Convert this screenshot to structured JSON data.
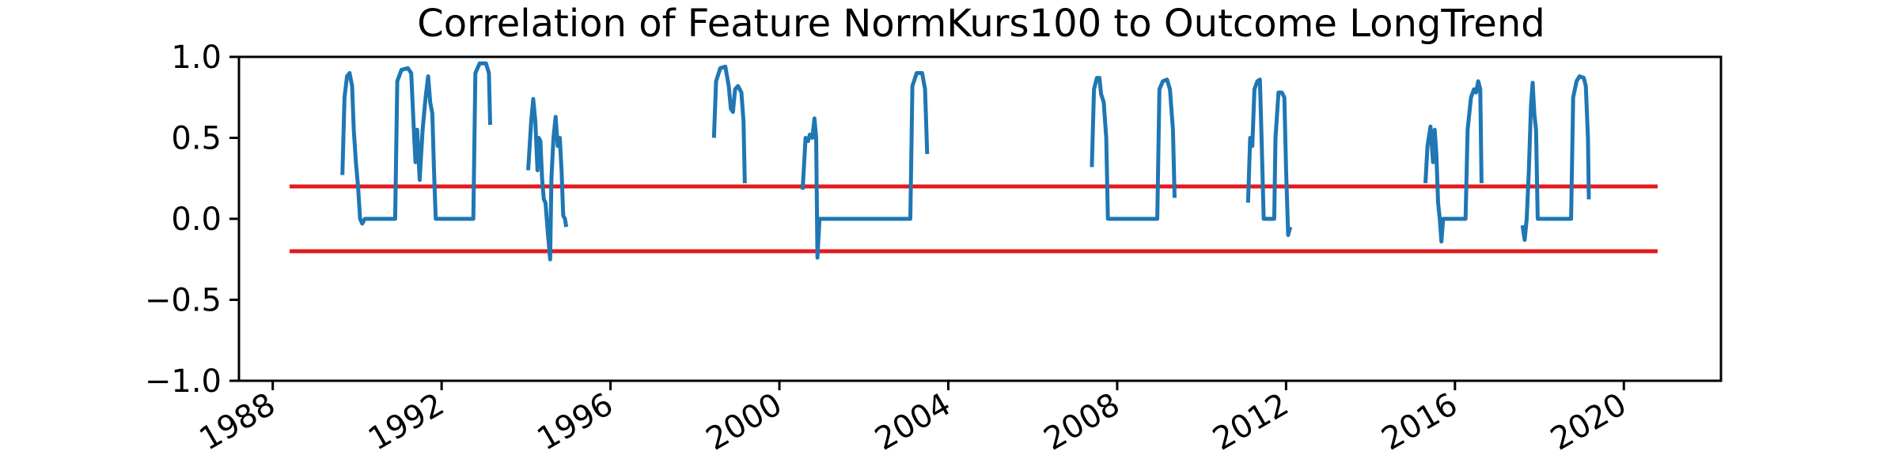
{
  "chart_data": {
    "type": "line",
    "title": "Correlation of Feature NormKurs100 to Outcome LongTrend",
    "xlabel": "",
    "ylabel": "",
    "xlim": [
      1987.2,
      2022.3
    ],
    "ylim": [
      -1.0,
      1.0
    ],
    "x_ticks": [
      1988,
      1992,
      1996,
      2000,
      2004,
      2008,
      2012,
      2016,
      2020
    ],
    "x_tick_labels": [
      "1988",
      "1992",
      "1996",
      "2000",
      "2004",
      "2008",
      "2012",
      "2016",
      "2020"
    ],
    "y_ticks": [
      -1.0,
      -0.5,
      0.0,
      0.5,
      1.0
    ],
    "y_tick_labels": [
      "−1.0",
      "−0.5",
      "0.0",
      "0.5",
      "1.0"
    ],
    "grid": false,
    "series_color": "#1f77b4",
    "threshold_color": "#e31a1c",
    "thresholds": [
      {
        "y": 0.2,
        "x_start": 1988.4,
        "x_end": 2020.8
      },
      {
        "y": -0.2,
        "x_start": 1988.4,
        "x_end": 2020.8
      }
    ],
    "series": [
      {
        "segments": [
          [
            [
              1989.65,
              0.27
            ],
            [
              1989.7,
              0.75
            ],
            [
              1989.76,
              0.88
            ],
            [
              1989.82,
              0.9
            ],
            [
              1989.88,
              0.82
            ],
            [
              1989.92,
              0.55
            ],
            [
              1989.97,
              0.35
            ],
            [
              1990.02,
              0.2
            ],
            [
              1990.07,
              0.0
            ],
            [
              1990.12,
              -0.03
            ],
            [
              1990.18,
              0.0
            ],
            [
              1990.9,
              0.0
            ],
            [
              1990.95,
              0.85
            ],
            [
              1991.05,
              0.92
            ],
            [
              1991.2,
              0.93
            ],
            [
              1991.28,
              0.9
            ],
            [
              1991.35,
              0.5
            ],
            [
              1991.38,
              0.35
            ],
            [
              1991.42,
              0.55
            ],
            [
              1991.48,
              0.24
            ],
            [
              1991.55,
              0.55
            ],
            [
              1991.62,
              0.75
            ],
            [
              1991.68,
              0.88
            ],
            [
              1991.73,
              0.72
            ],
            [
              1991.78,
              0.65
            ],
            [
              1991.82,
              0.3
            ],
            [
              1991.86,
              0.0
            ],
            [
              1992.75,
              0.0
            ],
            [
              1992.8,
              0.9
            ],
            [
              1992.9,
              0.96
            ],
            [
              1993.05,
              0.96
            ],
            [
              1993.12,
              0.9
            ],
            [
              1993.15,
              0.58
            ]
          ],
          [
            [
              1994.05,
              0.3
            ],
            [
              1994.12,
              0.6
            ],
            [
              1994.17,
              0.74
            ],
            [
              1994.22,
              0.6
            ],
            [
              1994.27,
              0.3
            ],
            [
              1994.3,
              0.5
            ],
            [
              1994.34,
              0.48
            ],
            [
              1994.38,
              0.25
            ],
            [
              1994.42,
              0.12
            ],
            [
              1994.46,
              0.1
            ],
            [
              1994.52,
              -0.1
            ],
            [
              1994.57,
              -0.25
            ],
            [
              1994.6,
              0.25
            ],
            [
              1994.65,
              0.5
            ],
            [
              1994.7,
              0.63
            ],
            [
              1994.75,
              0.45
            ],
            [
              1994.8,
              0.5
            ],
            [
              1994.84,
              0.3
            ],
            [
              1994.88,
              0.02
            ],
            [
              1994.92,
              0.0
            ],
            [
              1994.95,
              -0.05
            ]
          ],
          [
            [
              1998.45,
              0.5
            ],
            [
              1998.5,
              0.85
            ],
            [
              1998.6,
              0.93
            ],
            [
              1998.72,
              0.94
            ],
            [
              1998.8,
              0.82
            ],
            [
              1998.85,
              0.68
            ],
            [
              1998.9,
              0.66
            ],
            [
              1998.95,
              0.8
            ],
            [
              1999.02,
              0.82
            ],
            [
              1999.1,
              0.78
            ],
            [
              1999.15,
              0.6
            ],
            [
              1999.18,
              0.22
            ]
          ],
          [
            [
              2000.55,
              0.18
            ],
            [
              2000.62,
              0.5
            ],
            [
              2000.68,
              0.48
            ],
            [
              2000.72,
              0.52
            ],
            [
              2000.78,
              0.5
            ],
            [
              2000.83,
              0.62
            ],
            [
              2000.87,
              0.5
            ],
            [
              2000.9,
              -0.24
            ],
            [
              2000.95,
              0.0
            ],
            [
              2003.1,
              0.0
            ],
            [
              2003.15,
              0.82
            ],
            [
              2003.25,
              0.9
            ],
            [
              2003.38,
              0.9
            ],
            [
              2003.45,
              0.8
            ],
            [
              2003.5,
              0.4
            ]
          ],
          [
            [
              2007.4,
              0.32
            ],
            [
              2007.45,
              0.8
            ],
            [
              2007.52,
              0.87
            ],
            [
              2007.58,
              0.87
            ],
            [
              2007.62,
              0.77
            ],
            [
              2007.68,
              0.72
            ],
            [
              2007.74,
              0.5
            ],
            [
              2007.78,
              0.0
            ],
            [
              2008.95,
              0.0
            ],
            [
              2009.0,
              0.8
            ],
            [
              2009.08,
              0.85
            ],
            [
              2009.18,
              0.86
            ],
            [
              2009.25,
              0.8
            ],
            [
              2009.32,
              0.55
            ],
            [
              2009.36,
              0.13
            ]
          ],
          [
            [
              2011.1,
              0.1
            ],
            [
              2011.15,
              0.5
            ],
            [
              2011.2,
              0.45
            ],
            [
              2011.25,
              0.8
            ],
            [
              2011.32,
              0.85
            ],
            [
              2011.38,
              0.86
            ],
            [
              2011.42,
              0.5
            ],
            [
              2011.47,
              0.0
            ],
            [
              2011.72,
              0.0
            ],
            [
              2011.75,
              0.5
            ],
            [
              2011.82,
              0.78
            ],
            [
              2011.9,
              0.78
            ],
            [
              2011.96,
              0.75
            ],
            [
              2012.0,
              0.3
            ],
            [
              2012.05,
              -0.1
            ],
            [
              2012.1,
              -0.05
            ]
          ],
          [
            [
              2015.3,
              0.22
            ],
            [
              2015.35,
              0.45
            ],
            [
              2015.42,
              0.57
            ],
            [
              2015.48,
              0.35
            ],
            [
              2015.52,
              0.55
            ],
            [
              2015.56,
              0.4
            ],
            [
              2015.6,
              0.1
            ],
            [
              2015.64,
              0.0
            ],
            [
              2015.68,
              -0.14
            ],
            [
              2015.72,
              0.0
            ],
            [
              2016.25,
              0.0
            ],
            [
              2016.3,
              0.55
            ],
            [
              2016.38,
              0.75
            ],
            [
              2016.45,
              0.8
            ],
            [
              2016.5,
              0.78
            ],
            [
              2016.55,
              0.85
            ],
            [
              2016.6,
              0.8
            ],
            [
              2016.63,
              0.22
            ]
          ],
          [
            [
              2017.6,
              -0.04
            ],
            [
              2017.65,
              -0.13
            ],
            [
              2017.7,
              0.0
            ],
            [
              2017.75,
              0.3
            ],
            [
              2017.8,
              0.7
            ],
            [
              2017.84,
              0.84
            ],
            [
              2017.88,
              0.65
            ],
            [
              2017.92,
              0.55
            ],
            [
              2017.96,
              0.0
            ],
            [
              2018.75,
              0.0
            ],
            [
              2018.8,
              0.75
            ],
            [
              2018.88,
              0.85
            ],
            [
              2018.95,
              0.88
            ],
            [
              2019.05,
              0.87
            ],
            [
              2019.1,
              0.82
            ],
            [
              2019.15,
              0.5
            ],
            [
              2019.17,
              0.12
            ]
          ]
        ]
      }
    ]
  }
}
